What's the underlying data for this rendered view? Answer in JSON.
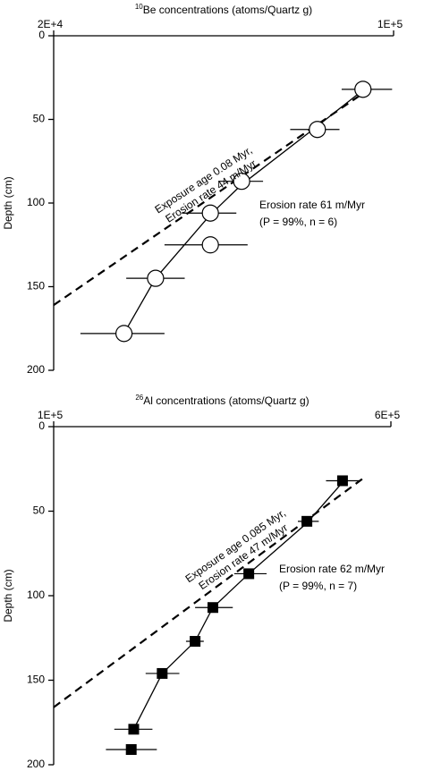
{
  "chart_data": [
    {
      "type": "scatter",
      "xlabel_sup": "10",
      "xlabel": "Be concentrations (atoms/Quartz g)",
      "ylabel": "Depth (cm)",
      "xscale": "log",
      "y_inverted": true,
      "marker": "open-circle",
      "xlim": [
        20000,
        100000
      ],
      "xticks": [
        {
          "value": 20000,
          "label": "2E+4"
        },
        {
          "value": 100000,
          "label": "1E+5"
        }
      ],
      "ylim": [
        0,
        200
      ],
      "yticks": [
        0,
        50,
        100,
        150,
        200
      ],
      "points": {
        "x": [
          86500,
          69700,
          48700,
          42000,
          42000,
          32400,
          27900
        ],
        "y": [
          32,
          56,
          87,
          106,
          125,
          145,
          178
        ],
        "x_err_low": [
          78200,
          61300,
          43600,
          36700,
          33800,
          28200,
          22700
        ],
        "x_err_high": [
          99300,
          77400,
          53900,
          47500,
          50100,
          37200,
          33800
        ]
      },
      "fit_line": {
        "x": [
          27900,
          32400,
          42000,
          48700,
          69700,
          88700
        ],
        "y": [
          178,
          145,
          107,
          89,
          54,
          30
        ],
        "label": [
          "Erosion rate 61 m/Myr",
          "(P = 99%, n = 6)"
        ]
      },
      "exposure_line": {
        "x": [
          20000,
          90000
        ],
        "y": [
          161,
          31
        ],
        "label": [
          "Exposure age 0.08 Myr,",
          "Erosion rate 44 m/Myr"
        ]
      }
    },
    {
      "type": "scatter",
      "xlabel_sup": "26",
      "xlabel": "Al concentrations (atoms/Quartz g)",
      "ylabel": "Depth (cm)",
      "xscale": "log",
      "y_inverted": true,
      "marker": "filled-square",
      "xlim": [
        100000,
        600000
      ],
      "xticks": [
        {
          "value": 100000,
          "label": "1E+5"
        },
        {
          "value": 600000,
          "label": "6E+5"
        }
      ],
      "ylim": [
        0,
        200
      ],
      "yticks": [
        0,
        50,
        100,
        150,
        200
      ],
      "points": {
        "x": [
          464000,
          384000,
          282000,
          233000,
          212000,
          178000,
          153000,
          151000
        ],
        "y": [
          32,
          56,
          87,
          107,
          127,
          146,
          179,
          191
        ],
        "x_err_low": [
          425000,
          366000,
          261000,
          212000,
          202000,
          163000,
          138000,
          132000
        ],
        "x_err_high": [
          508000,
          409000,
          310000,
          259000,
          222000,
          195000,
          169000,
          173000
        ]
      },
      "fit_line": {
        "x": [
          153000,
          178000,
          212000,
          233000,
          282000,
          384000,
          475000
        ],
        "y": [
          179,
          146,
          127,
          107,
          87,
          57,
          30
        ],
        "label": [
          "Erosion rate 62 m/Myr",
          "(P = 99%, n = 7)"
        ]
      },
      "exposure_line": {
        "x": [
          100000,
          515000
        ],
        "y": [
          166,
          31
        ],
        "label": [
          "Exposure age 0.085 Myr,",
          "Erosion rate 47 m/Myr"
        ]
      }
    }
  ]
}
